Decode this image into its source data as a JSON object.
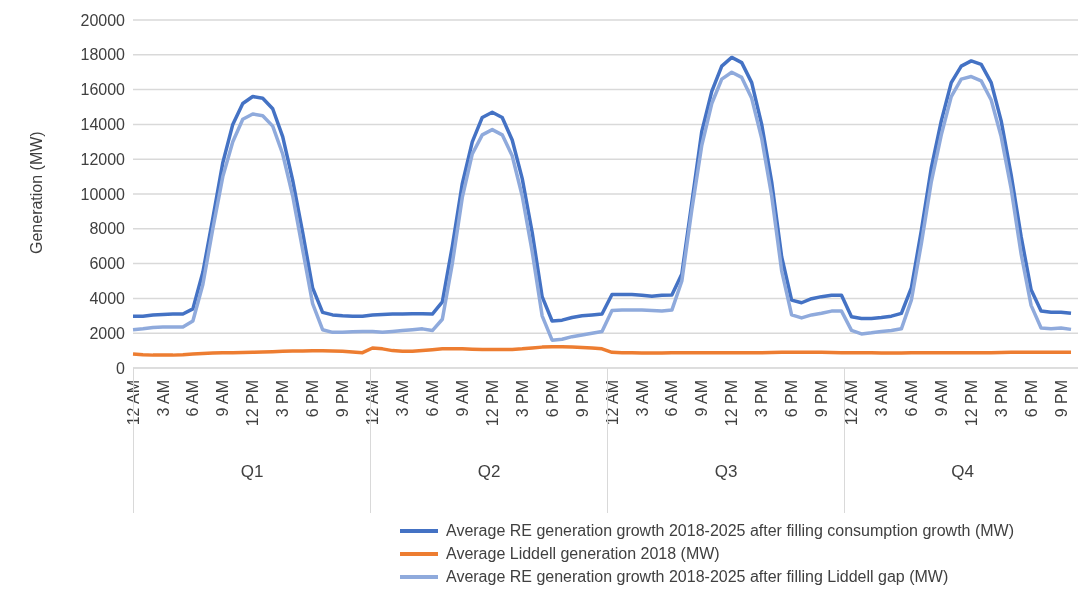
{
  "chart_data": {
    "type": "line",
    "ylabel": "Generation (MW)",
    "categories": [
      "12 AM",
      null,
      null,
      "3 AM",
      null,
      null,
      "6 AM",
      null,
      null,
      "9 AM",
      null,
      null,
      "12 PM",
      null,
      null,
      "3 PM",
      null,
      null,
      "6 PM",
      null,
      null,
      "9 PM",
      null,
      null,
      "12 AM",
      null,
      null,
      "3 AM",
      null,
      null,
      "6 AM",
      null,
      null,
      "9 AM",
      null,
      null,
      "12 PM",
      null,
      null,
      "3 PM",
      null,
      null,
      "6 PM",
      null,
      null,
      "9 PM",
      null,
      null,
      "12 AM",
      null,
      null,
      "3 AM",
      null,
      null,
      "6 AM",
      null,
      null,
      "9 AM",
      null,
      null,
      "12 PM",
      null,
      null,
      "3 PM",
      null,
      null,
      "6 PM",
      null,
      null,
      "9 PM",
      null,
      null,
      "12 AM",
      null,
      null,
      "3 AM",
      null,
      null,
      "6 AM",
      null,
      null,
      "9 AM",
      null,
      null,
      "12 PM",
      null,
      null,
      "3 PM",
      null,
      null,
      "6 PM",
      null,
      null,
      "9 PM",
      null,
      null
    ],
    "series": [
      {
        "name": "Average RE generation growth 2018-2025 after filling consumption growth (MW)",
        "color": "#4472c4",
        "values": [
          2980,
          2980,
          3050,
          3080,
          3100,
          3100,
          3400,
          5500,
          8600,
          11800,
          14000,
          15200,
          15600,
          15500,
          14900,
          13300,
          10800,
          7800,
          4600,
          3200,
          3050,
          3000,
          2980,
          2980,
          3050,
          3080,
          3100,
          3100,
          3120,
          3120,
          3100,
          3800,
          7000,
          10600,
          13000,
          14400,
          14700,
          14400,
          13100,
          10900,
          7800,
          4100,
          2700,
          2750,
          2900,
          3000,
          3050,
          3100,
          4220,
          4220,
          4220,
          4180,
          4120,
          4180,
          4200,
          5400,
          9500,
          13600,
          15900,
          17350,
          17850,
          17550,
          16400,
          14000,
          10700,
          6400,
          3900,
          3750,
          3980,
          4100,
          4180,
          4180,
          2940,
          2840,
          2840,
          2900,
          2980,
          3140,
          4600,
          7900,
          11500,
          14200,
          16400,
          17350,
          17650,
          17450,
          16400,
          14200,
          11100,
          7550,
          4500,
          3270,
          3200,
          3200,
          3140,
          null
        ]
      },
      {
        "name": "Average Liddell generation 2018 (MW)",
        "color": "#ed7d31",
        "values": [
          800,
          760,
          740,
          740,
          740,
          760,
          800,
          840,
          860,
          870,
          880,
          890,
          900,
          920,
          940,
          960,
          970,
          980,
          990,
          990,
          980,
          960,
          920,
          880,
          1150,
          1100,
          1000,
          960,
          960,
          1000,
          1050,
          1100,
          1100,
          1100,
          1080,
          1070,
          1060,
          1060,
          1070,
          1100,
          1150,
          1200,
          1220,
          1220,
          1200,
          1180,
          1150,
          1100,
          900,
          880,
          870,
          860,
          860,
          860,
          870,
          880,
          880,
          880,
          870,
          870,
          870,
          870,
          870,
          880,
          890,
          900,
          900,
          900,
          900,
          900,
          890,
          880,
          880,
          880,
          870,
          860,
          860,
          860,
          870,
          880,
          880,
          880,
          880,
          880,
          880,
          880,
          880,
          890,
          900,
          900,
          910,
          910,
          910,
          910,
          910,
          null
        ]
      },
      {
        "name": "Average RE generation growth 2018-2025 after filling Liddell gap (MW)",
        "color": "#8faadc",
        "values": [
          2200,
          2250,
          2330,
          2350,
          2350,
          2350,
          2700,
          4800,
          8000,
          11000,
          13000,
          14300,
          14600,
          14500,
          13900,
          12300,
          9900,
          6800,
          3700,
          2200,
          2050,
          2050,
          2080,
          2100,
          2100,
          2050,
          2100,
          2150,
          2200,
          2250,
          2150,
          2800,
          6000,
          9800,
          12300,
          13400,
          13700,
          13400,
          12200,
          9900,
          6700,
          3000,
          1600,
          1650,
          1800,
          1900,
          2000,
          2100,
          3300,
          3330,
          3330,
          3330,
          3300,
          3270,
          3330,
          5000,
          9100,
          12800,
          15200,
          16600,
          17000,
          16700,
          15500,
          13200,
          9900,
          5600,
          3050,
          2880,
          3050,
          3150,
          3270,
          3270,
          2160,
          1960,
          2020,
          2100,
          2160,
          2250,
          3900,
          7150,
          10700,
          13400,
          15600,
          16600,
          16750,
          16500,
          15400,
          13300,
          10300,
          6550,
          3600,
          2300,
          2250,
          2300,
          2220,
          null
        ]
      }
    ],
    "ylim": [
      0,
      20000
    ],
    "yticks": [
      0,
      2000,
      4000,
      6000,
      8000,
      10000,
      12000,
      14000,
      16000,
      18000,
      20000
    ],
    "grid": "y",
    "legend": "bottom",
    "marker": "none",
    "line_style": "solid",
    "annotations": [
      "Q1",
      "Q2",
      "Q3",
      "Q4"
    ]
  }
}
